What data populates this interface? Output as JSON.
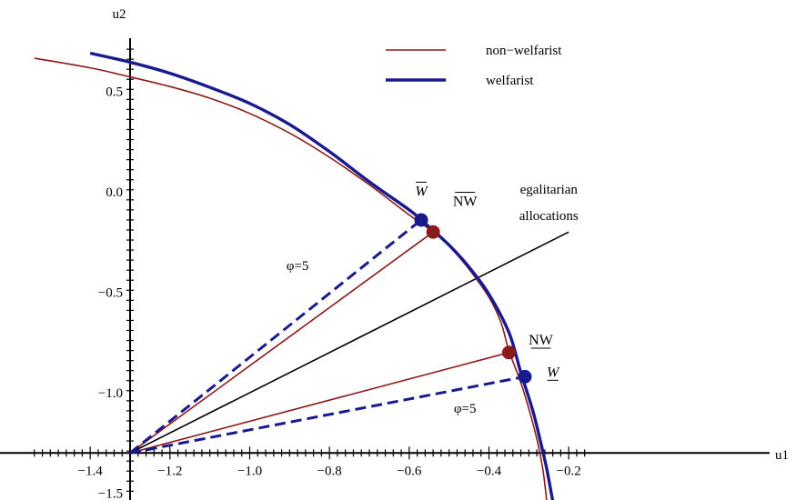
{
  "chart_data": {
    "type": "line",
    "title": "",
    "xlabel": "u1",
    "ylabel": "u2",
    "xlim": [
      -1.54,
      -0.14
    ],
    "ylim": [
      -1.54,
      0.72
    ],
    "origin": [
      -1.3,
      -1.3
    ],
    "x_ticks": [
      {
        "v": -1.4,
        "label": "−1.4"
      },
      {
        "v": -1.2,
        "label": "−1.2"
      },
      {
        "v": -1.0,
        "label": "−1.0"
      },
      {
        "v": -0.8,
        "label": "−0.8"
      },
      {
        "v": -0.6,
        "label": "−0.6"
      },
      {
        "v": -0.4,
        "label": "−0.4"
      },
      {
        "v": -0.2,
        "label": "−0.2"
      }
    ],
    "y_ticks": [
      {
        "v": 0.5,
        "label": "0.5"
      },
      {
        "v": 0.0,
        "label": "0.0"
      },
      {
        "v": -0.5,
        "label": "−0.5"
      },
      {
        "v": -1.0,
        "label": "−1.0"
      },
      {
        "v": -1.5,
        "label": "−1.5"
      }
    ],
    "legend": {
      "placement": "top-center",
      "entries": [
        {
          "name": "non−welfarist",
          "color": "#8b1a1a",
          "width": 1.6
        },
        {
          "name": "welfarist",
          "color": "#1a1a8f",
          "width": 3.4
        }
      ]
    },
    "series": [
      {
        "name": "non−welfarist",
        "color": "#8b1a1a",
        "width": 1.6,
        "points": [
          [
            -1.54,
            0.665
          ],
          [
            -1.4,
            0.617
          ],
          [
            -1.3,
            0.572
          ],
          [
            -1.2,
            0.524
          ],
          [
            -1.1,
            0.466
          ],
          [
            -1.0,
            0.39
          ],
          [
            -0.9,
            0.292
          ],
          [
            -0.8,
            0.172
          ],
          [
            -0.7,
            0.035
          ],
          [
            -0.6,
            -0.115
          ],
          [
            -0.54,
            -0.2
          ],
          [
            -0.5,
            -0.27
          ],
          [
            -0.45,
            -0.385
          ],
          [
            -0.4,
            -0.525
          ],
          [
            -0.37,
            -0.65
          ],
          [
            -0.35,
            -0.79
          ],
          [
            -0.32,
            -0.95
          ],
          [
            -0.3,
            -1.08
          ],
          [
            -0.28,
            -1.23
          ],
          [
            -0.265,
            -1.38
          ],
          [
            -0.255,
            -1.54
          ]
        ]
      },
      {
        "name": "welfarist",
        "color": "#1a1a8f",
        "width": 3.4,
        "points": [
          [
            -1.4,
            0.69
          ],
          [
            -1.3,
            0.645
          ],
          [
            -1.2,
            0.59
          ],
          [
            -1.1,
            0.52
          ],
          [
            -1.0,
            0.44
          ],
          [
            -0.9,
            0.335
          ],
          [
            -0.8,
            0.2
          ],
          [
            -0.7,
            0.05
          ],
          [
            -0.6,
            -0.09
          ],
          [
            -0.57,
            -0.14
          ],
          [
            -0.5,
            -0.265
          ],
          [
            -0.45,
            -0.375
          ],
          [
            -0.4,
            -0.51
          ],
          [
            -0.35,
            -0.7
          ],
          [
            -0.32,
            -0.9
          ],
          [
            -0.29,
            -1.09
          ],
          [
            -0.27,
            -1.25
          ],
          [
            -0.255,
            -1.38
          ],
          [
            -0.24,
            -1.54
          ]
        ]
      }
    ],
    "rays": [
      {
        "name": "egalitarian",
        "from": [
          -1.3,
          -1.3
        ],
        "to": [
          -0.2,
          -0.2
        ],
        "color": "#000000",
        "width": 1.6,
        "dash": false
      },
      {
        "name": "non−welfarist",
        "from": [
          -1.3,
          -1.3
        ],
        "to": [
          -0.54,
          -0.2
        ],
        "color": "#8b1a1a",
        "width": 1.6,
        "dash": false
      },
      {
        "name": "non−welfarist",
        "from": [
          -1.3,
          -1.3
        ],
        "to": [
          -0.35,
          -0.8
        ],
        "color": "#8b1a1a",
        "width": 1.6,
        "dash": false
      },
      {
        "name": "welfarist",
        "from": [
          -1.3,
          -1.3
        ],
        "to": [
          -0.57,
          -0.14
        ],
        "color": "#1a1a8f",
        "width": 3.0,
        "dash": true
      },
      {
        "name": "welfarist",
        "from": [
          -1.3,
          -1.3
        ],
        "to": [
          -0.31,
          -0.92
        ],
        "color": "#1a1a8f",
        "width": 3.0,
        "dash": true
      }
    ],
    "points": [
      {
        "x": -0.57,
        "y": -0.14,
        "color": "#1a1a8f"
      },
      {
        "x": -0.54,
        "y": -0.2,
        "color": "#8b1a1a"
      },
      {
        "x": -0.35,
        "y": -0.8,
        "color": "#8b1a1a"
      },
      {
        "x": -0.31,
        "y": -0.92,
        "color": "#1a1a8f"
      }
    ],
    "point_labels": [
      {
        "text": "W",
        "style": "overline",
        "italic": true,
        "x": -0.57,
        "y": -0.02
      },
      {
        "text": "NW",
        "style": "overline",
        "italic": false,
        "x": -0.46,
        "y": -0.07
      },
      {
        "text": "NW",
        "style": "underline",
        "italic": false,
        "x": -0.27,
        "y": -0.76
      },
      {
        "text": "W",
        "style": "underline",
        "italic": true,
        "x": -0.24,
        "y": -0.92
      }
    ],
    "annotations": [
      {
        "text": "egalitarian",
        "x": -0.25,
        "y": -0.01
      },
      {
        "text": "allocations",
        "x": -0.25,
        "y": -0.14
      },
      {
        "text": "φ=5",
        "x": -0.88,
        "y": -0.39
      },
      {
        "text": "φ=5",
        "x": -0.46,
        "y": -1.1
      }
    ]
  }
}
